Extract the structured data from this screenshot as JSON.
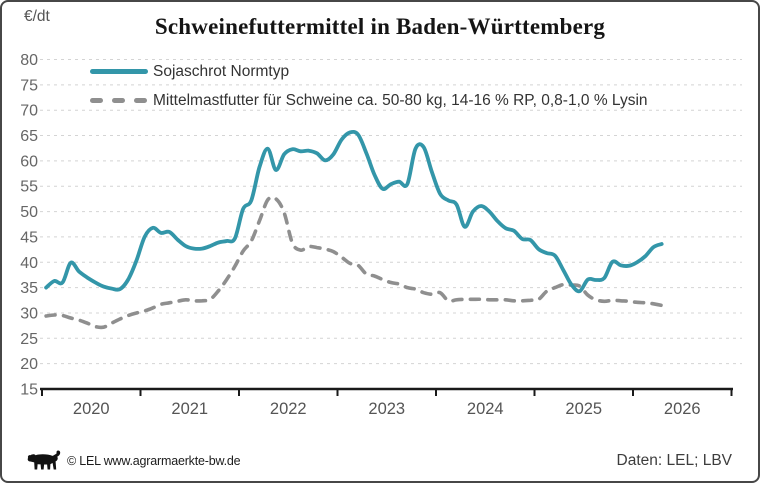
{
  "header": {
    "unit_label": "€/dt",
    "title": "Schweinefuttermittel in Baden-Württemberg"
  },
  "legend": {
    "items": [
      {
        "label": "Sojaschrot Normtyp",
        "color": "#3396a9",
        "style": "solid"
      },
      {
        "label": "Mittelmastfutter für Schweine ca. 50-80 kg, 14-16 % RP, 0,8-1,0 % Lysin",
        "color": "#8f8f8f",
        "style": "dashed"
      }
    ]
  },
  "chart_data": {
    "type": "line",
    "title": "Schweinefuttermittel in Baden-Württemberg",
    "ylabel": "€/dt",
    "ylim": [
      15,
      80
    ],
    "yticks": [
      15,
      20,
      25,
      30,
      35,
      40,
      45,
      50,
      55,
      60,
      65,
      70,
      75,
      80
    ],
    "xtick_labels": [
      "2020",
      "2021",
      "2022",
      "2023",
      "2024",
      "2025",
      "2026"
    ],
    "x_start": "2020-01",
    "x_interval": "monthly",
    "grid": "horizontal dashed",
    "legend_position": "top-left",
    "series": [
      {
        "name": "Sojaschrot Normtyp",
        "color": "#3396a9",
        "dash": false,
        "values": [
          35.0,
          36.3,
          36.0,
          39.9,
          38.2,
          37.0,
          36.0,
          35.2,
          34.8,
          34.7,
          36.6,
          40.3,
          45.0,
          46.8,
          45.8,
          46.0,
          44.5,
          43.2,
          42.7,
          42.7,
          43.2,
          43.9,
          44.2,
          44.7,
          50.5,
          52.2,
          58.8,
          62.4,
          58.2,
          61.3,
          62.3,
          61.9,
          62.0,
          61.5,
          60.1,
          61.3,
          64.2,
          65.6,
          65.2,
          61.6,
          57.3,
          54.5,
          55.4,
          55.9,
          55.4,
          62.4,
          62.7,
          57.8,
          53.5,
          52.2,
          51.4,
          47.0,
          50.0,
          51.1,
          50.0,
          48.1,
          46.7,
          46.2,
          44.6,
          44.4,
          42.6,
          41.8,
          41.3,
          38.5,
          35.6,
          34.3,
          36.6,
          36.5,
          36.9,
          40.1,
          39.4,
          39.3,
          40.0,
          41.2,
          43.0,
          43.6
        ]
      },
      {
        "name": "Mittelmastfutter für Schweine ca. 50-80 kg, 14-16 % RP, 0,8-1,0 % Lysin",
        "color": "#8f8f8f",
        "dash": true,
        "values": [
          29.4,
          29.6,
          29.5,
          29.0,
          28.6,
          28.0,
          27.3,
          27.2,
          28.0,
          28.8,
          29.5,
          30.0,
          30.4,
          31.0,
          31.7,
          32.0,
          32.3,
          32.6,
          32.4,
          32.4,
          32.7,
          34.4,
          36.6,
          39.2,
          42.2,
          44.2,
          48.2,
          52.3,
          52.5,
          49.8,
          43.8,
          42.4,
          43.1,
          42.9,
          42.6,
          42.1,
          41.0,
          39.8,
          39.4,
          37.7,
          37.3,
          36.6,
          36.0,
          35.7,
          35.0,
          34.7,
          34.0,
          33.7,
          34.0,
          32.4,
          32.6,
          32.7,
          32.7,
          32.7,
          32.6,
          32.6,
          32.6,
          32.4,
          32.4,
          32.5,
          32.7,
          34.3,
          35.0,
          35.6,
          35.5,
          35.3,
          33.5,
          32.6,
          32.3,
          32.5,
          32.4,
          32.3,
          32.1,
          32.0,
          31.8,
          31.5
        ]
      }
    ]
  },
  "footer": {
    "copyright": "© LEL www.agrarmaerkte-bw.de",
    "source": "Daten: LEL; LBV",
    "logo": "baden-wuerttemberg-lion"
  },
  "colors": {
    "sojaschrot_line": "#3396a9",
    "mittelmastfutter_line": "#8f8f8f",
    "gridline": "#d4d4d4",
    "axis": "#1a1a1a",
    "tick_text": "#666666"
  }
}
